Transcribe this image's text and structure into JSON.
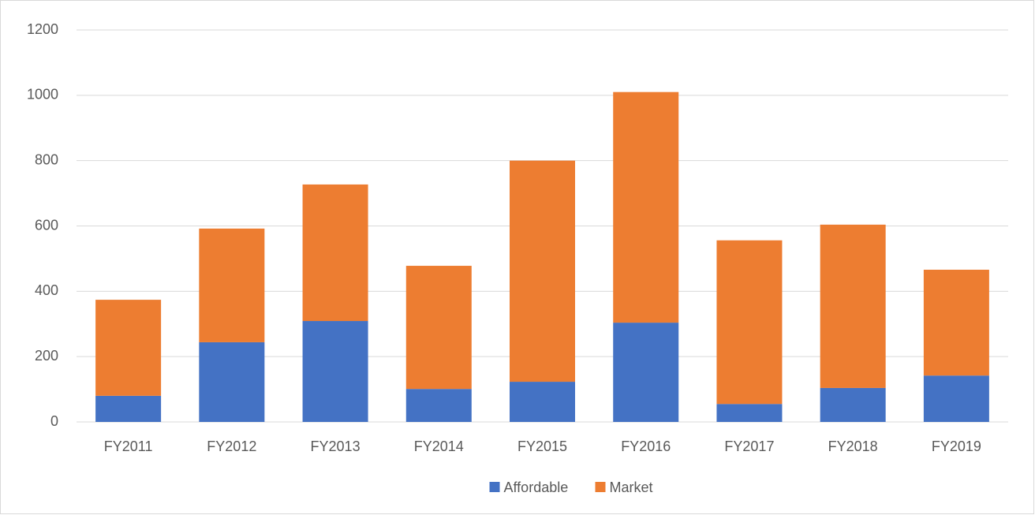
{
  "chart_data": {
    "type": "stacked_bar",
    "categories": [
      "FY2011",
      "FY2012",
      "FY2013",
      "FY2014",
      "FY2015",
      "FY2016",
      "FY2017",
      "FY2018",
      "FY2019"
    ],
    "series": [
      {
        "name": "Affordable",
        "color": "#4472c4",
        "values": [
          80,
          244,
          309,
          101,
          123,
          304,
          55,
          104,
          142
        ]
      },
      {
        "name": "Market",
        "color": "#ed7d31",
        "values": [
          294,
          348,
          418,
          377,
          677,
          706,
          501,
          500,
          324
        ]
      }
    ],
    "ylim": [
      0,
      1200
    ],
    "yticks": [
      0,
      200,
      400,
      600,
      800,
      1000,
      1200
    ],
    "grid": true,
    "legend": "bottom"
  }
}
